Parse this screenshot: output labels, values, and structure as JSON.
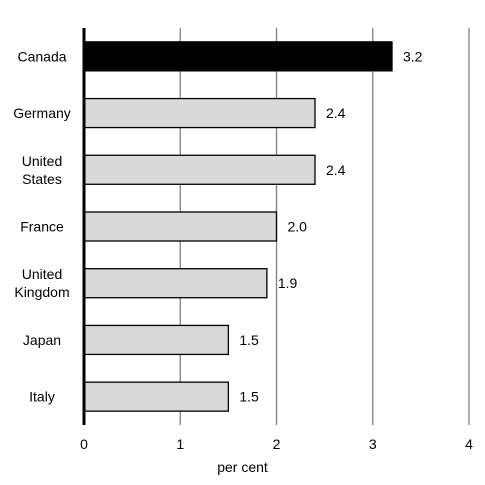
{
  "chart_data": {
    "type": "bar",
    "orientation": "horizontal",
    "categories": [
      "Canada",
      "Germany",
      "United States",
      "France",
      "United Kingdom",
      "Japan",
      "Italy"
    ],
    "category_lines": [
      [
        "Canada"
      ],
      [
        "Germany"
      ],
      [
        "United",
        "States"
      ],
      [
        "France"
      ],
      [
        "United",
        "Kingdom"
      ],
      [
        "Japan"
      ],
      [
        "Italy"
      ]
    ],
    "values": [
      3.2,
      2.4,
      2.4,
      2.0,
      1.9,
      1.5,
      1.5
    ],
    "data_labels": [
      "3.2",
      "2.4",
      "2.4",
      "2.0",
      "1.9",
      "1.5",
      "1.5"
    ],
    "xticks": [
      "0",
      "1",
      "2",
      "3",
      "4"
    ],
    "xlim": [
      0,
      4
    ],
    "xlabel": "per cent",
    "ylabel": "",
    "title": "",
    "grid": "vertical",
    "legend": "none",
    "colors": {
      "highlight": "#000000",
      "bar": "#d9d9d9",
      "grid": "#808080",
      "axis": "#000000"
    }
  }
}
